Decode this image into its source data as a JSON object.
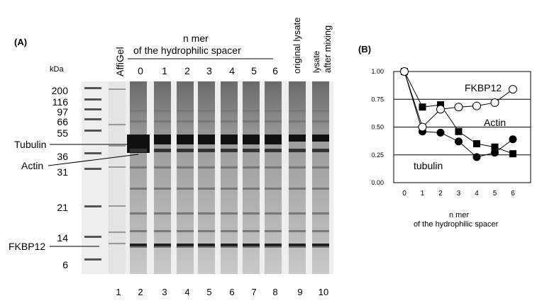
{
  "panel_a": {
    "label": "(A)",
    "kda_label": "kDa",
    "mw_markers": [
      "200",
      "116",
      "97",
      "66",
      "55",
      "36",
      "31",
      "21",
      "14",
      "6"
    ],
    "band_labels": {
      "tubulin": "Tubulin",
      "actin": "Actin",
      "fkbp12": "FKBP12"
    },
    "header": {
      "line1": "n mer",
      "line2": "of the hydrophilic spacer"
    },
    "affigel": "AffiGel",
    "nmer_lanes": [
      "0",
      "1",
      "2",
      "3",
      "4",
      "5",
      "6"
    ],
    "original_lysate": "original lysate",
    "lysate_after_mixing": {
      "line1": "lysate",
      "line2": "after mixing"
    },
    "lane_numbers": [
      "1",
      "2",
      "3",
      "4",
      "5",
      "6",
      "7",
      "8",
      "9",
      "10"
    ]
  },
  "panel_b": {
    "label": "(B)",
    "annotations": {
      "fkbp12": "FKBP12",
      "actin": "Actin",
      "tubulin": "tubulin"
    },
    "xlabel_line1": "n mer",
    "xlabel_line2": "of the hydrophilic spacer"
  },
  "chart_data": {
    "type": "line",
    "x": [
      0,
      1,
      2,
      3,
      4,
      5,
      6
    ],
    "xticks": [
      "0",
      "1",
      "2",
      "3",
      "4",
      "5",
      "6"
    ],
    "yticks": [
      "0.00",
      "0.25",
      "0.50",
      "0.75",
      "1.00"
    ],
    "ylim": [
      0,
      1
    ],
    "grid": "horizontal",
    "series": [
      {
        "name": "FKBP12",
        "marker": "open-circle",
        "values": [
          1.0,
          0.5,
          0.66,
          0.68,
          0.69,
          0.72,
          0.84
        ]
      },
      {
        "name": "Actin",
        "marker": "filled-square",
        "values": [
          1.0,
          0.68,
          0.7,
          0.46,
          0.35,
          0.32,
          0.26
        ]
      },
      {
        "name": "tubulin",
        "marker": "filled-circle",
        "values": [
          1.0,
          0.46,
          0.45,
          0.37,
          0.23,
          0.27,
          0.39
        ]
      }
    ]
  }
}
